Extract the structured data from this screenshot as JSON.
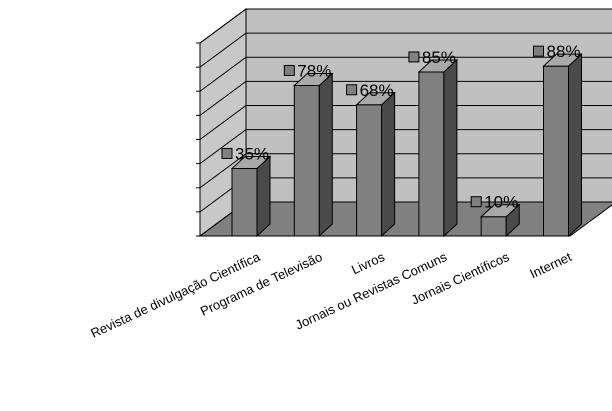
{
  "chart_data": {
    "type": "bar",
    "title": "",
    "xlabel": "",
    "ylabel": "",
    "ylim": [
      0,
      100
    ],
    "grid": true,
    "legend": "none",
    "categories": [
      "Revista de divulgação Científica",
      "Programa de Televisão",
      "Livros",
      "Jornais ou Revistas Comuns",
      "Jornais Científicos",
      "Internet"
    ],
    "values": [
      35,
      78,
      68,
      85,
      10,
      88
    ],
    "data_labels": [
      "35%",
      "78%",
      "68%",
      "85%",
      "10%",
      "88%"
    ],
    "colors": {
      "bar_front": "#808080",
      "bar_side": "#4a4a4a",
      "bar_top": "#a9a9a9",
      "back_wall": "#c0c0c0",
      "side_wall": "#c8c8c8",
      "floor": "#808080",
      "grid": "#000000",
      "label_marker": "#808080"
    }
  }
}
